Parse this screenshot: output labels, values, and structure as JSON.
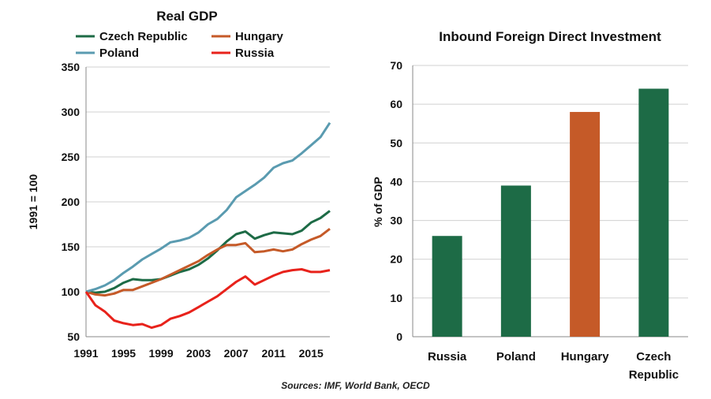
{
  "chart_data": [
    {
      "type": "line",
      "title": "Real GDP",
      "xlabel": "",
      "ylabel": "1991 = 100",
      "xlim": [
        1991,
        2017
      ],
      "ylim": [
        50,
        350
      ],
      "x_ticks": [
        "1991",
        "1995",
        "1999",
        "2003",
        "2007",
        "2011",
        "2015"
      ],
      "y_ticks": [
        "50",
        "100",
        "150",
        "200",
        "250",
        "300",
        "350"
      ],
      "grid": true,
      "legend_position": "top",
      "x": [
        1991,
        1992,
        1993,
        1994,
        1995,
        1996,
        1997,
        1998,
        1999,
        2000,
        2001,
        2002,
        2003,
        2004,
        2005,
        2006,
        2007,
        2008,
        2009,
        2010,
        2011,
        2012,
        2013,
        2014,
        2015,
        2016,
        2017
      ],
      "series": [
        {
          "name": "Czech Republic",
          "color": "#1d6b46",
          "values": [
            100,
            99,
            100,
            104,
            110,
            114,
            113,
            113,
            114,
            118,
            122,
            125,
            130,
            137,
            146,
            156,
            164,
            167,
            159,
            163,
            166,
            165,
            164,
            168,
            177,
            182,
            190
          ]
        },
        {
          "name": "Hungary",
          "color": "#c55a28",
          "values": [
            100,
            97,
            96,
            98,
            102,
            102,
            106,
            110,
            114,
            119,
            124,
            129,
            134,
            141,
            147,
            152,
            152,
            154,
            144,
            145,
            147,
            145,
            147,
            153,
            158,
            162,
            170
          ]
        },
        {
          "name": "Poland",
          "color": "#5a9bb0",
          "values": [
            100,
            103,
            107,
            113,
            121,
            128,
            136,
            142,
            148,
            155,
            157,
            160,
            166,
            175,
            181,
            191,
            205,
            212,
            219,
            227,
            238,
            243,
            246,
            254,
            263,
            272,
            288
          ]
        },
        {
          "name": "Russia",
          "color": "#e8221b",
          "values": [
            100,
            85,
            78,
            68,
            65,
            63,
            64,
            60,
            63,
            70,
            73,
            77,
            83,
            89,
            95,
            103,
            111,
            117,
            108,
            113,
            118,
            122,
            124,
            125,
            122,
            122,
            124
          ]
        }
      ]
    },
    {
      "type": "bar",
      "title": "Inbound Foreign Direct Investment",
      "xlabel": "",
      "ylabel": "% of GDP",
      "ylim": [
        0,
        70
      ],
      "y_ticks": [
        "0",
        "10",
        "20",
        "30",
        "40",
        "50",
        "60",
        "70"
      ],
      "grid": true,
      "categories": [
        {
          "lines": [
            "Russia"
          ]
        },
        {
          "lines": [
            "Poland"
          ]
        },
        {
          "lines": [
            "Hungary"
          ]
        },
        {
          "lines": [
            "Czech",
            "Republic"
          ]
        }
      ],
      "values": [
        26,
        39,
        58,
        64
      ],
      "colors": [
        "#1d6b46",
        "#1d6b46",
        "#c55a28",
        "#1d6b46"
      ]
    }
  ],
  "source": "Sources: IMF, World Bank, OECD"
}
